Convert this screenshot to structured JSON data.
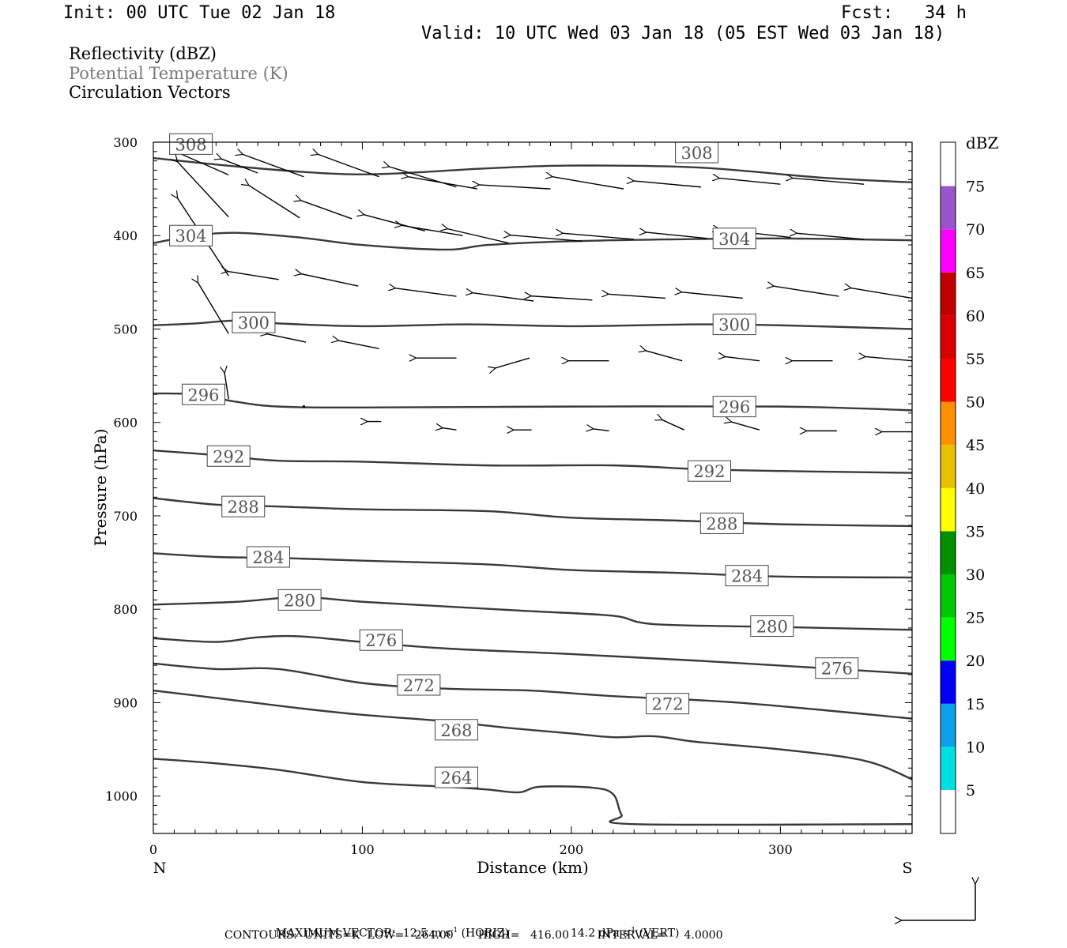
{
  "header": {
    "init": "Init: 00 UTC Tue 02 Jan 18",
    "fcst": "Fcst:   34 h",
    "valid": "Valid: 10 UTC Wed 03 Jan 18 (05 EST Wed 03 Jan 18)"
  },
  "legend": {
    "field1": "Reflectivity (dBZ)",
    "field2": "Potential Temperature (K)",
    "field3": "Circulation Vectors",
    "field2_color": "#7a7a7a"
  },
  "footer": {
    "line1_a": "MAXIMUM VECTOR:  12.5 m s",
    "line1_b": "(HORIZ)",
    "line1_c": "14.2 dPa s",
    "line1_d": "(VERT)",
    "exp": "-1",
    "line2": "CONTOURS:  UNITS=K  LOW=   264.00       HIGH=   416.00        INTERVAL=     4.0000"
  },
  "chart_data": {
    "type": "line",
    "title": "",
    "xlabel": "Distance (km)",
    "ylabel": "Pressure (hPa)",
    "xlim": [
      0,
      363
    ],
    "ylim": [
      300,
      1040
    ],
    "y_inverted": true,
    "x_ticks": [
      0,
      100,
      200,
      300
    ],
    "y_ticks": [
      300,
      400,
      500,
      600,
      700,
      800,
      900,
      1000
    ],
    "x_end_labels": [
      "N",
      "S"
    ],
    "contour_line_color": "#3a3a3a",
    "contour_levels_labeled": [
      308,
      304,
      300,
      296,
      292,
      288,
      284,
      280,
      276,
      272,
      268,
      264
    ],
    "series": [
      {
        "name": "308",
        "x": [
          0,
          40,
          80,
          110,
          160,
          200,
          260,
          320,
          363
        ],
        "y": [
          317,
          326,
          333,
          334,
          328,
          325,
          327,
          338,
          343
        ],
        "labels": [
          {
            "x": 18,
            "y": 302
          },
          {
            "x": 260,
            "y": 311
          }
        ]
      },
      {
        "name": "304",
        "x": [
          0,
          20,
          40,
          70,
          100,
          140,
          160,
          200,
          250,
          300,
          363
        ],
        "y": [
          408,
          400,
          397,
          402,
          410,
          415,
          410,
          406,
          404,
          403,
          405
        ],
        "labels": [
          {
            "x": 18,
            "y": 400
          },
          {
            "x": 278,
            "y": 403
          }
        ]
      },
      {
        "name": "300",
        "x": [
          0,
          20,
          40,
          60,
          100,
          150,
          200,
          260,
          300,
          363
        ],
        "y": [
          496,
          494,
          491,
          494,
          497,
          495,
          497,
          495,
          496,
          500
        ],
        "labels": [
          {
            "x": 48,
            "y": 493
          },
          {
            "x": 278,
            "y": 495
          }
        ]
      },
      {
        "name": "296",
        "x": [
          0,
          20,
          40,
          60,
          100,
          200,
          300,
          363
        ],
        "y": [
          569,
          570,
          578,
          583,
          584,
          583,
          583,
          587
        ],
        "labels": [
          {
            "x": 24,
            "y": 570
          },
          {
            "x": 278,
            "y": 583
          }
        ]
      },
      {
        "name": "292",
        "x": [
          0,
          30,
          60,
          100,
          160,
          220,
          260,
          300,
          363
        ],
        "y": [
          630,
          635,
          641,
          642,
          646,
          646,
          650,
          652,
          654
        ],
        "labels": [
          {
            "x": 36,
            "y": 636
          },
          {
            "x": 266,
            "y": 652
          }
        ]
      },
      {
        "name": "288",
        "x": [
          0,
          30,
          60,
          100,
          160,
          200,
          250,
          300,
          363
        ],
        "y": [
          681,
          688,
          690,
          693,
          695,
          702,
          705,
          709,
          711
        ],
        "labels": [
          {
            "x": 43,
            "y": 690
          },
          {
            "x": 272,
            "y": 708
          }
        ]
      },
      {
        "name": "284",
        "x": [
          0,
          30,
          60,
          100,
          160,
          200,
          250,
          300,
          363
        ],
        "y": [
          740,
          744,
          745,
          748,
          752,
          758,
          761,
          765,
          766
        ],
        "labels": [
          {
            "x": 55,
            "y": 744
          },
          {
            "x": 284,
            "y": 764
          }
        ]
      },
      {
        "name": "280",
        "x": [
          0,
          40,
          70,
          100,
          140,
          180,
          220,
          240,
          300,
          363
        ],
        "y": [
          795,
          792,
          787,
          792,
          797,
          802,
          807,
          816,
          819,
          822
        ],
        "labels": [
          {
            "x": 70,
            "y": 790
          },
          {
            "x": 296,
            "y": 818
          }
        ]
      },
      {
        "name": "276",
        "x": [
          0,
          30,
          50,
          70,
          100,
          140,
          200,
          260,
          320,
          363
        ],
        "y": [
          831,
          835,
          830,
          829,
          835,
          842,
          848,
          855,
          863,
          869
        ],
        "labels": [
          {
            "x": 109,
            "y": 833
          },
          {
            "x": 327,
            "y": 863
          }
        ]
      },
      {
        "name": "272",
        "x": [
          0,
          30,
          60,
          100,
          140,
          180,
          220,
          280,
          363
        ],
        "y": [
          858,
          864,
          864,
          879,
          885,
          887,
          893,
          900,
          917
        ],
        "labels": [
          {
            "x": 127,
            "y": 881
          },
          {
            "x": 246,
            "y": 901
          }
        ]
      },
      {
        "name": "268",
        "x": [
          0,
          30,
          70,
          100,
          140,
          170,
          200,
          220,
          240,
          260,
          300,
          340,
          363
        ],
        "y": [
          887,
          895,
          906,
          913,
          920,
          927,
          933,
          937,
          936,
          942,
          950,
          962,
          982
        ],
        "labels": [
          {
            "x": 145,
            "y": 929
          }
        ]
      },
      {
        "name": "264",
        "x": [
          0,
          30,
          60,
          100,
          140,
          160,
          175,
          185,
          210,
          220,
          224,
          230,
          363
        ],
        "y": [
          960,
          965,
          972,
          985,
          990,
          993,
          996,
          990,
          991,
          998,
          1020,
          1030,
          1030
        ],
        "labels": [
          {
            "x": 145,
            "y": 980
          }
        ]
      }
    ],
    "circulation_vectors": [
      {
        "x": 36,
        "p": 335,
        "u": -25,
        "v": -11
      },
      {
        "x": 50,
        "p": 333,
        "u": -18,
        "v": -7
      },
      {
        "x": 72,
        "p": 337,
        "u": -30,
        "v": -11
      },
      {
        "x": 108,
        "p": 337,
        "u": -30,
        "v": -11
      },
      {
        "x": 145,
        "p": 348,
        "u": -33,
        "v": -10
      },
      {
        "x": 155,
        "p": 350,
        "u": -34,
        "v": -6
      },
      {
        "x": 190,
        "p": 350,
        "u": -35,
        "v": -2
      },
      {
        "x": 225,
        "p": 350,
        "u": -35,
        "v": -6
      },
      {
        "x": 262,
        "p": 348,
        "u": -33,
        "v": -3
      },
      {
        "x": 300,
        "p": 345,
        "u": -30,
        "v": -3
      },
      {
        "x": 340,
        "p": 345,
        "u": -35,
        "v": -3
      },
      {
        "x": 36,
        "p": 380,
        "u": -25,
        "v": -27
      },
      {
        "x": 70,
        "p": 381,
        "u": -25,
        "v": -16
      },
      {
        "x": 95,
        "p": 382,
        "u": -25,
        "v": -9
      },
      {
        "x": 130,
        "p": 395,
        "u": -30,
        "v": -8
      },
      {
        "x": 148,
        "p": 400,
        "u": -30,
        "v": -5
      },
      {
        "x": 170,
        "p": 408,
        "u": -30,
        "v": -7
      },
      {
        "x": 205,
        "p": 406,
        "u": -35,
        "v": -3
      },
      {
        "x": 230,
        "p": 404,
        "u": -35,
        "v": -3
      },
      {
        "x": 265,
        "p": 403,
        "u": -30,
        "v": -3
      },
      {
        "x": 305,
        "p": 402,
        "u": -35,
        "v": -4
      },
      {
        "x": 340,
        "p": 404,
        "u": -33,
        "v": -3
      },
      {
        "x": 36,
        "p": 443,
        "u": -25,
        "v": -38
      },
      {
        "x": 60,
        "p": 447,
        "u": -25,
        "v": -4
      },
      {
        "x": 98,
        "p": 454,
        "u": -28,
        "v": -6
      },
      {
        "x": 145,
        "p": 465,
        "u": -30,
        "v": -4
      },
      {
        "x": 182,
        "p": 470,
        "u": -30,
        "v": -4
      },
      {
        "x": 210,
        "p": 469,
        "u": -30,
        "v": -2
      },
      {
        "x": 245,
        "p": 467,
        "u": -28,
        "v": -2
      },
      {
        "x": 282,
        "p": 467,
        "u": -30,
        "v": -3
      },
      {
        "x": 328,
        "p": 465,
        "u": -32,
        "v": -5
      },
      {
        "x": 363,
        "p": 467,
        "u": -30,
        "v": -5
      },
      {
        "x": 36,
        "p": 505,
        "u": -15,
        "v": -25
      },
      {
        "x": 73,
        "p": 514,
        "u": -19,
        "v": -4
      },
      {
        "x": 108,
        "p": 521,
        "u": -20,
        "v": -4
      },
      {
        "x": 145,
        "p": 531,
        "u": -20,
        "v": 0
      },
      {
        "x": 180,
        "p": 531,
        "u": -17,
        "v": 5
      },
      {
        "x": 218,
        "p": 534,
        "u": -20,
        "v": 0
      },
      {
        "x": 253,
        "p": 534,
        "u": -18,
        "v": -5
      },
      {
        "x": 290,
        "p": 534,
        "u": -17,
        "v": -2
      },
      {
        "x": 325,
        "p": 534,
        "u": -20,
        "v": 0
      },
      {
        "x": 363,
        "p": 534,
        "u": -23,
        "v": -2
      },
      {
        "x": 36,
        "p": 575,
        "u": -2,
        "v": -13
      },
      {
        "x": 72,
        "p": 583,
        "u": -2,
        "v": 0
      },
      {
        "x": 109,
        "p": 599,
        "u": -7,
        "v": 0
      },
      {
        "x": 145,
        "p": 608,
        "u": -7,
        "v": -1
      },
      {
        "x": 181,
        "p": 608,
        "u": -9,
        "v": 0
      },
      {
        "x": 218,
        "p": 609,
        "u": -8,
        "v": -1
      },
      {
        "x": 254,
        "p": 608,
        "u": -11,
        "v": -5
      },
      {
        "x": 290,
        "p": 608,
        "u": -14,
        "v": -4
      },
      {
        "x": 327,
        "p": 609,
        "u": -15,
        "v": 0
      },
      {
        "x": 363,
        "p": 610,
        "u": -15,
        "v": 0
      }
    ],
    "colorbar": {
      "title": "dBZ",
      "ticks": [
        "5",
        "10",
        "15",
        "20",
        "25",
        "30",
        "35",
        "40",
        "45",
        "50",
        "55",
        "60",
        "65",
        "70",
        "75"
      ],
      "colors": [
        "#00e0e0",
        "#0ea0ea",
        "#0000f6",
        "#00ff00",
        "#00c800",
        "#009000",
        "#ffff00",
        "#e7c000",
        "#ff9000",
        "#ff0000",
        "#d60000",
        "#c00000",
        "#ff00ff",
        "#9955c9"
      ]
    }
  }
}
